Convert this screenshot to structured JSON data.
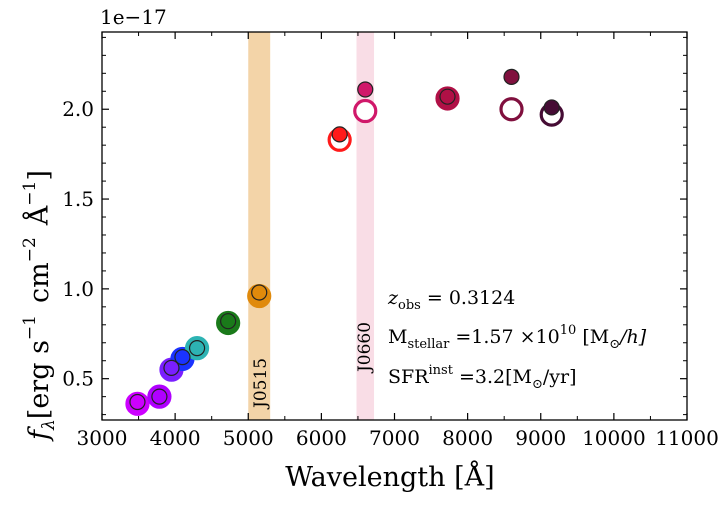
{
  "chart_data": {
    "type": "scatter",
    "title": "",
    "offset_label": "1e−17",
    "xlabel": "Wavelength  [Å]",
    "ylabel_parts": {
      "f": "f",
      "sub": "λ",
      "erg": "[erg  s",
      "exp1": "−1",
      "cm": "cm",
      "exp2": "−2",
      "ang": "Å",
      "exp3": "−1",
      "close": "]"
    },
    "xlim": [
      3000,
      11000
    ],
    "ylim": [
      0.27,
      2.43
    ],
    "x_ticks": [
      3000,
      4000,
      5000,
      6000,
      7000,
      8000,
      9000,
      10000,
      11000
    ],
    "x_tick_labels": [
      "3000",
      "4000",
      "5000",
      "6000",
      "7000",
      "8000",
      "9000",
      "10000",
      "11000"
    ],
    "y_ticks": [
      0.5,
      1.0,
      1.5,
      2.0
    ],
    "y_tick_labels": [
      "0.5",
      "1.0",
      "1.5",
      "2.0"
    ],
    "bands": [
      {
        "name": "J0515",
        "label": "J0515",
        "x_min": 5000,
        "x_max": 5300,
        "color": "#f3d4a8"
      },
      {
        "name": "J0660",
        "label": "J0660",
        "x_min": 6480,
        "x_max": 6720,
        "color": "#f9dde6"
      }
    ],
    "observed": [
      {
        "x": 3485,
        "y": 0.37,
        "color": "#cc00ff"
      },
      {
        "x": 3785,
        "y": 0.4,
        "color": "#b000ff"
      },
      {
        "x": 3950,
        "y": 0.56,
        "color": "#7a1fff"
      },
      {
        "x": 4100,
        "y": 0.62,
        "color": "#1a33ff"
      },
      {
        "x": 4300,
        "y": 0.67,
        "color": "#2db3b3"
      },
      {
        "x": 4725,
        "y": 0.82,
        "color": "#1a7a1a"
      },
      {
        "x": 5150,
        "y": 0.98,
        "color": "#e08a0c"
      },
      {
        "x": 6250,
        "y": 1.86,
        "color": "#ff1a1a"
      },
      {
        "x": 6600,
        "y": 2.11,
        "color": "#d0186a"
      },
      {
        "x": 7725,
        "y": 2.07,
        "color": "#b01046"
      },
      {
        "x": 8600,
        "y": 2.18,
        "color": "#80103e"
      },
      {
        "x": 9150,
        "y": 2.01,
        "color": "#450c34"
      }
    ],
    "model": [
      {
        "x": 3485,
        "y": 0.36,
        "color": "#cc00ff",
        "filled": true
      },
      {
        "x": 3785,
        "y": 0.4,
        "color": "#b000ff",
        "filled": true
      },
      {
        "x": 3950,
        "y": 0.55,
        "color": "#7a1fff",
        "filled": true
      },
      {
        "x": 4100,
        "y": 0.61,
        "color": "#1a33ff",
        "filled": true
      },
      {
        "x": 4300,
        "y": 0.67,
        "color": "#2db3b3",
        "filled": true
      },
      {
        "x": 4725,
        "y": 0.81,
        "color": "#1a7a1a",
        "filled": true
      },
      {
        "x": 5150,
        "y": 0.96,
        "color": "#e08a0c",
        "filled": true
      },
      {
        "x": 6250,
        "y": 1.83,
        "color": "#ff1a1a",
        "filled": false
      },
      {
        "x": 6600,
        "y": 1.99,
        "color": "#d0186a",
        "filled": false
      },
      {
        "x": 7725,
        "y": 2.06,
        "color": "#b01046",
        "filled": true
      },
      {
        "x": 8600,
        "y": 2.0,
        "color": "#80103e",
        "filled": false
      },
      {
        "x": 9150,
        "y": 1.97,
        "color": "#450c34",
        "filled": false
      }
    ],
    "annotations": {
      "z_sym": "z",
      "z_sub": "obs",
      "z_val": " = 0.3124",
      "m_main": "M",
      "m_sub": "stellar",
      "m_val": " =1.57 ×10",
      "m_exp": "10",
      "m_unit": " [M",
      "m_odot": "⊙",
      "m_unit2": "/h]",
      "sfr_main": "SFR",
      "sfr_sup": "inst",
      "sfr_val": " =3.2[M",
      "sfr_odot": "⊙",
      "sfr_unit": "/yr]"
    }
  }
}
